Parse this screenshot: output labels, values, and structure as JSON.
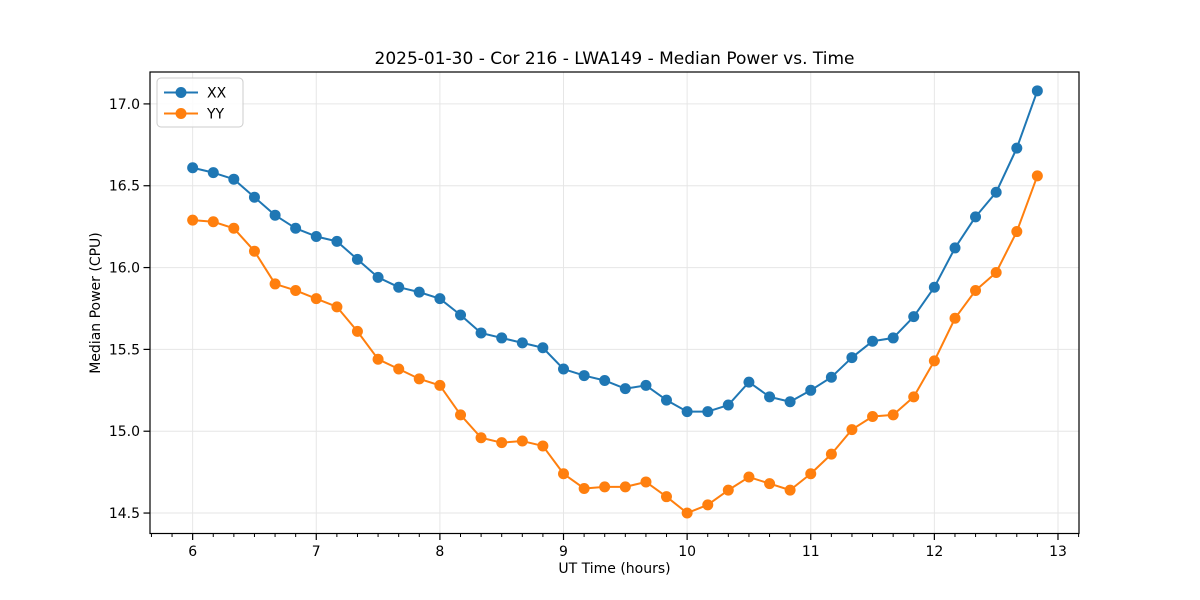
{
  "chart_data": {
    "type": "line",
    "title": "2025-01-30 - Cor 216 - LWA149 - Median Power vs. Time",
    "xlabel": "UT Time (hours)",
    "ylabel": "Median Power (CPU)",
    "xlim": [
      5.655,
      13.17
    ],
    "ylim": [
      14.375,
      17.195
    ],
    "xticks": [
      6,
      7,
      8,
      9,
      10,
      11,
      12,
      13
    ],
    "xtick_labels": [
      "6",
      "7",
      "8",
      "9",
      "10",
      "11",
      "12",
      "13"
    ],
    "yticks": [
      14.5,
      15.0,
      15.5,
      16.0,
      16.5,
      17.0
    ],
    "ytick_labels": [
      "14.5",
      "15.0",
      "15.5",
      "16.0",
      "16.5",
      "17.0"
    ],
    "minor_xtick_step": 0.166667,
    "grid": "major-both",
    "grid_color": "#e6e6e6",
    "spine_color": "#000000",
    "legend_position": "upper-left",
    "x": [
      6.0,
      6.167,
      6.333,
      6.5,
      6.667,
      6.833,
      7.0,
      7.167,
      7.333,
      7.5,
      7.667,
      7.833,
      8.0,
      8.167,
      8.333,
      8.5,
      8.667,
      8.833,
      9.0,
      9.167,
      9.333,
      9.5,
      9.667,
      9.833,
      10.0,
      10.167,
      10.333,
      10.5,
      10.667,
      10.833,
      11.0,
      11.167,
      11.333,
      11.5,
      11.667,
      11.833,
      12.0,
      12.167,
      12.333,
      12.5,
      12.667,
      12.833
    ],
    "series": [
      {
        "name": "XX",
        "color": "#1f77b4",
        "values": [
          16.61,
          16.58,
          16.54,
          16.43,
          16.32,
          16.24,
          16.19,
          16.16,
          16.05,
          15.94,
          15.88,
          15.85,
          15.81,
          15.71,
          15.6,
          15.57,
          15.54,
          15.51,
          15.38,
          15.34,
          15.31,
          15.26,
          15.28,
          15.19,
          15.12,
          15.12,
          15.16,
          15.3,
          15.21,
          15.18,
          15.25,
          15.33,
          15.45,
          15.55,
          15.57,
          15.7,
          15.88,
          16.12,
          16.31,
          16.46,
          16.73,
          17.08
        ]
      },
      {
        "name": "YY",
        "color": "#ff7f0e",
        "values": [
          16.29,
          16.28,
          16.24,
          16.1,
          15.9,
          15.86,
          15.81,
          15.76,
          15.61,
          15.44,
          15.38,
          15.32,
          15.28,
          15.1,
          14.96,
          14.93,
          14.94,
          14.91,
          14.74,
          14.65,
          14.66,
          14.66,
          14.69,
          14.6,
          14.5,
          14.55,
          14.64,
          14.72,
          14.68,
          14.64,
          14.74,
          14.86,
          15.01,
          15.09,
          15.1,
          15.21,
          15.43,
          15.69,
          15.86,
          15.97,
          16.22,
          16.56
        ]
      }
    ]
  }
}
